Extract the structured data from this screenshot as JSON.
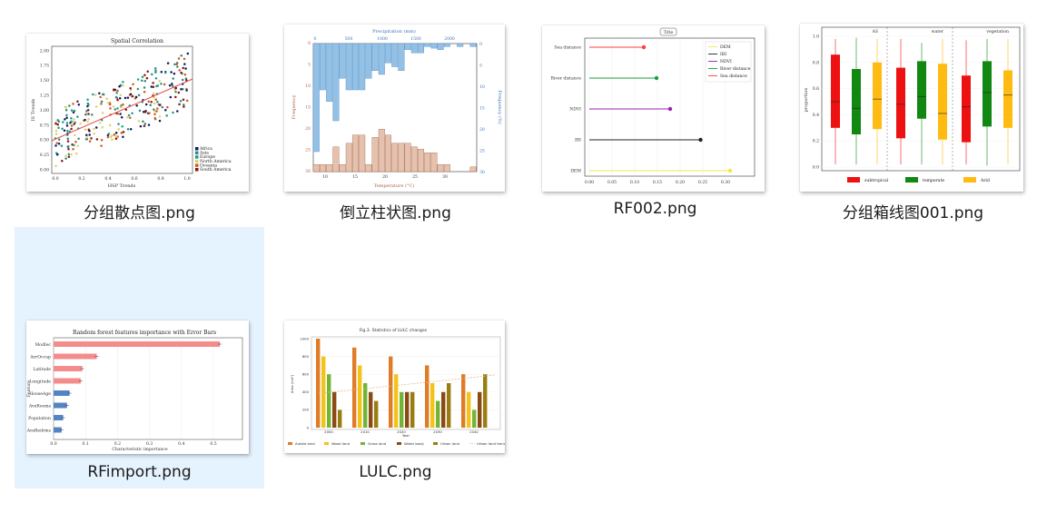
{
  "files": [
    {
      "name": "分组散点图.png",
      "chart": {
        "title": "Spatial Correlation",
        "xlabel": "HSP Trends",
        "ylabel": "IS Trends",
        "xticks": [
          "0.0",
          "0.2",
          "0.4",
          "0.6",
          "0.8",
          "1.0"
        ],
        "yticks": [
          "0.00",
          "0.25",
          "0.50",
          "0.75",
          "1.00",
          "1.25",
          "1.50",
          "1.75",
          "2.00"
        ],
        "legend": [
          {
            "label": "Africa",
            "color": "#0b1d5c"
          },
          {
            "label": "Asia",
            "color": "#2f8a7e"
          },
          {
            "label": "Europe",
            "color": "#1f9a8a"
          },
          {
            "label": "North America",
            "color": "#e0cf6c"
          },
          {
            "label": "Oceania",
            "color": "#d0591d"
          },
          {
            "label": "South America",
            "color": "#8b1410"
          }
        ]
      }
    },
    {
      "name": "倒立柱状图.png",
      "chart": {
        "top_xlabel": "Precipitation (mm)",
        "bottom_xlabel": "Temperature (°C)",
        "left_ylabel": "Frequency",
        "right_ylabel": "Frequency (%)",
        "bottom_xticks": [
          "10",
          "15",
          "20",
          "25",
          "30"
        ],
        "top_xticks": [
          "0",
          "500",
          "1000",
          "1500",
          "2000"
        ],
        "left_yticks": [
          "0",
          "5",
          "10",
          "15",
          "20",
          "25",
          "30"
        ],
        "right_yticks": [
          "0",
          "5",
          "10",
          "15",
          "20",
          "25",
          "30"
        ]
      }
    },
    {
      "name": "RF002.png",
      "chart": {
        "title": "Title",
        "categories": [
          "Sea distance",
          "River distance",
          "NDVI",
          "IBI",
          "DEM"
        ],
        "colors": [
          "#ff3b3b",
          "#1e9e3a",
          "#9b1fb0",
          "#222222",
          "#f0e84a"
        ],
        "xticks": [
          "0.00",
          "0.05",
          "0.10",
          "0.15",
          "0.20",
          "0.25",
          "0.30"
        ],
        "legend": [
          {
            "label": "DEM",
            "color": "#f0e84a"
          },
          {
            "label": "IBI",
            "color": "#222222"
          },
          {
            "label": "NDVI",
            "color": "#9b1fb0"
          },
          {
            "label": "River distance",
            "color": "#1e9e3a"
          },
          {
            "label": "Sea distance",
            "color": "#ff3b3b"
          }
        ]
      }
    },
    {
      "name": "分组箱线图001.png",
      "chart": {
        "ylabel": "proportion",
        "groups": [
          "AS",
          "water",
          "vegetation"
        ],
        "yticks": [
          "0.0",
          "0.2",
          "0.4",
          "0.6",
          "0.8",
          "1.0"
        ],
        "legend": [
          {
            "label": "subtropical",
            "color": "#ee1111"
          },
          {
            "label": "temperate",
            "color": "#118811"
          },
          {
            "label": "Arid",
            "color": "#ffbb11"
          }
        ]
      }
    },
    {
      "name": "RFimport.png",
      "chart": {
        "title": "Random forest features importance with Error Bars",
        "xlabel": "Characteristic importance",
        "ylabel": "Feature",
        "features": [
          "ModIec",
          "AvrOccup",
          "Latitude",
          "Longitude",
          "HouseAge",
          "AveRooms",
          "Population",
          "AveBedrms"
        ],
        "xticks": [
          "0.0",
          "0.1",
          "0.2",
          "0.3",
          "0.4",
          "0.5"
        ]
      }
    },
    {
      "name": "LULC.png",
      "chart": {
        "title": "Fig.3. Statistics of LULC changes",
        "xlabel": "Year",
        "ylabel": "Area (km²)",
        "categories": [
          "2000",
          "2010",
          "2020",
          "2030",
          "2040"
        ],
        "yticks": [
          "0",
          "200",
          "400",
          "600",
          "800",
          "1000"
        ],
        "legend": [
          {
            "label": "Arable land",
            "color": "#e07b27"
          },
          {
            "label": "Wood land",
            "color": "#f2c417"
          },
          {
            "label": "Grass land",
            "color": "#72b536"
          },
          {
            "label": "Water body",
            "color": "#8a4a14"
          },
          {
            "label": "Urban land",
            "color": "#9a7d10"
          },
          {
            "label": "Urban land trend",
            "color": "#e8b98f"
          }
        ]
      }
    }
  ],
  "selected_index": 4
}
